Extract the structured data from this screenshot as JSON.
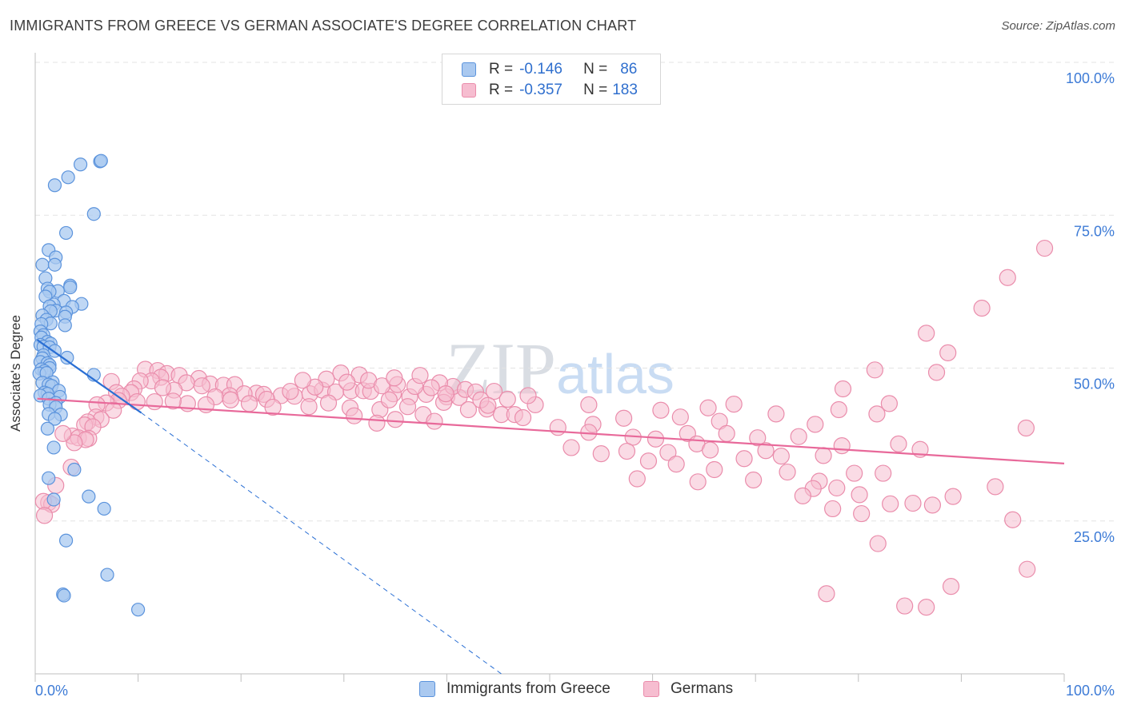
{
  "title": "IMMIGRANTS FROM GREECE VS GERMAN ASSOCIATE'S DEGREE CORRELATION CHART",
  "source": "Source: ZipAtlas.com",
  "watermark": "ZIPatlas",
  "legend": {
    "rows": [
      {
        "r_label": "R =",
        "r_value": "-0.146",
        "n_label": "N =",
        "n_value": "86"
      },
      {
        "r_label": "R =",
        "r_value": "-0.357",
        "n_label": "N =",
        "n_value": "183"
      }
    ]
  },
  "bottom_legend": [
    "Immigrants from Greece",
    "Germans"
  ],
  "colors": {
    "blue_fill": "#aac9f0",
    "blue_stroke": "#5b93dc",
    "blue_line": "#2a6fd4",
    "pink_fill": "#f6bdd0",
    "pink_stroke": "#ea8cab",
    "pink_line": "#e8699a",
    "grid": "#e3e3e3",
    "tick_label": "#3d7bd6"
  },
  "chart_data": {
    "type": "scatter",
    "title": "IMMIGRANTS FROM GREECE VS GERMAN ASSOCIATE'S DEGREE CORRELATION CHART",
    "xlabel": "",
    "ylabel": "Associate's Degree",
    "xlim": [
      0,
      100
    ],
    "ylim": [
      0,
      100
    ],
    "x_tick_labels": [
      "0.0%",
      "100.0%"
    ],
    "y_ticks": [
      25,
      50,
      75,
      100
    ],
    "y_tick_labels": [
      "25.0%",
      "50.0%",
      "75.0%",
      "100.0%"
    ],
    "grid": true,
    "legend_position": "top-center",
    "series": [
      {
        "name": "Immigrants from Greece",
        "R": -0.146,
        "N": 86,
        "trend_solid": [
          [
            0.2,
            54.6
          ],
          [
            10.3,
            42.7
          ]
        ],
        "trend_dashed": [
          [
            10.3,
            42.7
          ],
          [
            45.3,
            0.0
          ]
        ],
        "points": [
          [
            6.3,
            83.8
          ],
          [
            6.4,
            83.9
          ],
          [
            4.4,
            83.3
          ],
          [
            3.2,
            81.2
          ],
          [
            1.9,
            79.9
          ],
          [
            5.7,
            75.2
          ],
          [
            3.0,
            72.1
          ],
          [
            1.3,
            69.3
          ],
          [
            2.0,
            68.1
          ],
          [
            0.7,
            66.9
          ],
          [
            1.9,
            66.9
          ],
          [
            1.0,
            64.7
          ],
          [
            3.4,
            63.5
          ],
          [
            3.4,
            63.2
          ],
          [
            1.2,
            63.0
          ],
          [
            2.2,
            62.6
          ],
          [
            1.4,
            62.5
          ],
          [
            1.0,
            61.7
          ],
          [
            2.8,
            61.0
          ],
          [
            4.5,
            60.5
          ],
          [
            1.8,
            60.4
          ],
          [
            1.4,
            60.1
          ],
          [
            3.6,
            60.0
          ],
          [
            2.0,
            59.4
          ],
          [
            1.5,
            59.3
          ],
          [
            3.0,
            59.1
          ],
          [
            0.7,
            58.6
          ],
          [
            2.9,
            58.4
          ],
          [
            1.1,
            57.9
          ],
          [
            1.5,
            57.3
          ],
          [
            0.6,
            57.2
          ],
          [
            2.9,
            57.0
          ],
          [
            0.5,
            56.0
          ],
          [
            0.8,
            55.4
          ],
          [
            0.6,
            55.0
          ],
          [
            1.2,
            54.3
          ],
          [
            1.5,
            54.0
          ],
          [
            0.5,
            53.8
          ],
          [
            0.8,
            53.5
          ],
          [
            1.4,
            53.4
          ],
          [
            1.9,
            52.8
          ],
          [
            0.8,
            52.1
          ],
          [
            0.7,
            51.6
          ],
          [
            3.1,
            51.7
          ],
          [
            0.5,
            51.0
          ],
          [
            1.2,
            50.8
          ],
          [
            1.4,
            50.5
          ],
          [
            1.4,
            50.0
          ],
          [
            0.6,
            49.8
          ],
          [
            0.9,
            49.5
          ],
          [
            0.4,
            49.1
          ],
          [
            1.1,
            49.2
          ],
          [
            5.7,
            48.9
          ],
          [
            1.7,
            47.7
          ],
          [
            0.7,
            47.6
          ],
          [
            1.3,
            47.3
          ],
          [
            1.6,
            47.1
          ],
          [
            2.3,
            46.3
          ],
          [
            0.9,
            46.0
          ],
          [
            1.2,
            45.8
          ],
          [
            0.5,
            45.5
          ],
          [
            2.4,
            45.3
          ],
          [
            1.3,
            45.0
          ],
          [
            2.0,
            44.3
          ],
          [
            1.4,
            44.0
          ],
          [
            2.0,
            43.6
          ],
          [
            1.3,
            42.5
          ],
          [
            2.5,
            42.4
          ],
          [
            1.9,
            41.7
          ],
          [
            1.2,
            40.1
          ],
          [
            1.8,
            37.0
          ],
          [
            3.8,
            33.4
          ],
          [
            1.3,
            32.0
          ],
          [
            1.8,
            28.5
          ],
          [
            5.2,
            29.0
          ],
          [
            6.7,
            27.0
          ],
          [
            3.0,
            21.8
          ],
          [
            7.0,
            16.2
          ],
          [
            2.7,
            13.0
          ],
          [
            2.8,
            12.8
          ],
          [
            10.0,
            10.5
          ]
        ]
      },
      {
        "name": "Germans",
        "R": -0.357,
        "N": 183,
        "trend_solid": [
          [
            0.2,
            45.0
          ],
          [
            100.0,
            34.4
          ]
        ],
        "points": [
          [
            98.1,
            69.6
          ],
          [
            94.5,
            64.8
          ],
          [
            92.0,
            59.8
          ],
          [
            86.6,
            55.7
          ],
          [
            88.7,
            52.5
          ],
          [
            81.6,
            49.7
          ],
          [
            87.6,
            49.3
          ],
          [
            78.5,
            46.6
          ],
          [
            83.0,
            44.2
          ],
          [
            67.9,
            44.1
          ],
          [
            53.8,
            44.0
          ],
          [
            81.8,
            42.5
          ],
          [
            65.4,
            43.5
          ],
          [
            78.1,
            43.2
          ],
          [
            60.8,
            43.1
          ],
          [
            72.0,
            42.5
          ],
          [
            62.7,
            42.0
          ],
          [
            57.2,
            41.8
          ],
          [
            66.5,
            41.3
          ],
          [
            75.8,
            40.8
          ],
          [
            96.3,
            40.2
          ],
          [
            50.8,
            40.3
          ],
          [
            54.2,
            40.8
          ],
          [
            53.8,
            39.5
          ],
          [
            63.4,
            39.3
          ],
          [
            58.1,
            38.7
          ],
          [
            67.2,
            39.3
          ],
          [
            70.2,
            38.6
          ],
          [
            74.2,
            38.8
          ],
          [
            60.3,
            38.4
          ],
          [
            64.3,
            37.6
          ],
          [
            83.9,
            37.6
          ],
          [
            78.4,
            37.3
          ],
          [
            86.0,
            36.7
          ],
          [
            71.0,
            36.5
          ],
          [
            61.5,
            36.2
          ],
          [
            55.0,
            36.0
          ],
          [
            52.1,
            37.0
          ],
          [
            57.5,
            36.4
          ],
          [
            65.6,
            36.6
          ],
          [
            68.9,
            35.2
          ],
          [
            72.5,
            35.6
          ],
          [
            76.6,
            35.7
          ],
          [
            62.3,
            34.3
          ],
          [
            59.6,
            34.8
          ],
          [
            66.0,
            33.4
          ],
          [
            73.1,
            33.0
          ],
          [
            79.6,
            32.8
          ],
          [
            82.4,
            32.8
          ],
          [
            69.8,
            31.7
          ],
          [
            76.2,
            31.5
          ],
          [
            58.5,
            31.9
          ],
          [
            64.4,
            31.4
          ],
          [
            93.3,
            30.6
          ],
          [
            77.9,
            30.4
          ],
          [
            75.6,
            30.3
          ],
          [
            80.1,
            29.3
          ],
          [
            89.2,
            29.0
          ],
          [
            87.2,
            27.6
          ],
          [
            83.1,
            27.8
          ],
          [
            77.5,
            27.0
          ],
          [
            74.6,
            29.1
          ],
          [
            85.3,
            27.9
          ],
          [
            95.0,
            25.2
          ],
          [
            80.3,
            26.2
          ],
          [
            81.9,
            21.3
          ],
          [
            96.4,
            17.1
          ],
          [
            89.0,
            14.3
          ],
          [
            76.9,
            13.1
          ],
          [
            84.5,
            11.1
          ],
          [
            86.6,
            10.9
          ],
          [
            10.7,
            49.8
          ],
          [
            11.9,
            49.6
          ],
          [
            12.8,
            49.1
          ],
          [
            14.0,
            48.8
          ],
          [
            12.2,
            48.5
          ],
          [
            15.9,
            48.3
          ],
          [
            11.3,
            47.9
          ],
          [
            10.2,
            47.9
          ],
          [
            7.4,
            47.8
          ],
          [
            14.7,
            47.6
          ],
          [
            17.0,
            47.4
          ],
          [
            18.3,
            47.2
          ],
          [
            19.4,
            47.3
          ],
          [
            16.2,
            47.1
          ],
          [
            9.6,
            46.6
          ],
          [
            13.5,
            46.4
          ],
          [
            12.4,
            46.8
          ],
          [
            7.9,
            46.0
          ],
          [
            9.3,
            46.0
          ],
          [
            8.4,
            45.4
          ],
          [
            21.5,
            45.9
          ],
          [
            20.3,
            45.8
          ],
          [
            18.9,
            45.5
          ],
          [
            22.2,
            45.7
          ],
          [
            23.9,
            45.5
          ],
          [
            25.2,
            45.4
          ],
          [
            24.8,
            46.2
          ],
          [
            26.7,
            45.8
          ],
          [
            22.5,
            44.9
          ],
          [
            17.5,
            45.3
          ],
          [
            19.0,
            44.8
          ],
          [
            27.9,
            46.4
          ],
          [
            29.2,
            46.1
          ],
          [
            30.7,
            46.3
          ],
          [
            31.9,
            46.3
          ],
          [
            32.6,
            46.2
          ],
          [
            34.8,
            45.8
          ],
          [
            36.4,
            45.3
          ],
          [
            38.0,
            45.7
          ],
          [
            40.0,
            45.3
          ],
          [
            41.2,
            45.2
          ],
          [
            39.7,
            44.4
          ],
          [
            42.1,
            43.2
          ],
          [
            43.9,
            43.3
          ],
          [
            45.3,
            42.4
          ],
          [
            46.6,
            42.4
          ],
          [
            47.4,
            41.9
          ],
          [
            48.6,
            44.0
          ],
          [
            37.7,
            42.4
          ],
          [
            36.2,
            43.7
          ],
          [
            33.5,
            43.2
          ],
          [
            34.4,
            44.8
          ],
          [
            30.6,
            43.5
          ],
          [
            31.0,
            42.2
          ],
          [
            35.0,
            41.6
          ],
          [
            38.8,
            41.3
          ],
          [
            33.2,
            41.0
          ],
          [
            28.5,
            44.3
          ],
          [
            26.6,
            43.7
          ],
          [
            23.1,
            43.6
          ],
          [
            20.8,
            44.2
          ],
          [
            16.6,
            44.0
          ],
          [
            14.8,
            44.2
          ],
          [
            13.4,
            44.6
          ],
          [
            11.6,
            44.5
          ],
          [
            9.9,
            44.5
          ],
          [
            8.1,
            44.7
          ],
          [
            6.9,
            44.3
          ],
          [
            6.0,
            44.0
          ],
          [
            7.6,
            43.1
          ],
          [
            5.9,
            42.0
          ],
          [
            6.4,
            41.6
          ],
          [
            5.1,
            41.2
          ],
          [
            4.8,
            40.7
          ],
          [
            5.6,
            40.4
          ],
          [
            3.6,
            38.9
          ],
          [
            4.2,
            38.6
          ],
          [
            5.2,
            38.5
          ],
          [
            4.9,
            38.3
          ],
          [
            3.8,
            37.8
          ],
          [
            2.7,
            39.3
          ],
          [
            3.5,
            33.8
          ],
          [
            2.0,
            30.8
          ],
          [
            1.3,
            28.0
          ],
          [
            1.6,
            27.7
          ],
          [
            0.8,
            28.2
          ],
          [
            0.9,
            25.9
          ],
          [
            29.7,
            49.2
          ],
          [
            31.5,
            48.9
          ],
          [
            28.3,
            48.2
          ],
          [
            35.2,
            47.3
          ],
          [
            40.6,
            47.0
          ],
          [
            39.3,
            47.6
          ],
          [
            27.2,
            46.9
          ],
          [
            41.8,
            46.5
          ],
          [
            44.6,
            46.2
          ],
          [
            32.4,
            48.0
          ],
          [
            33.7,
            47.1
          ],
          [
            36.9,
            47.0
          ],
          [
            38.5,
            46.8
          ],
          [
            42.8,
            46.1
          ],
          [
            45.9,
            44.9
          ],
          [
            47.9,
            45.5
          ],
          [
            34.9,
            48.4
          ],
          [
            26.0,
            48.0
          ],
          [
            37.4,
            48.8
          ],
          [
            30.3,
            47.7
          ],
          [
            39.9,
            45.8
          ],
          [
            43.3,
            44.8
          ],
          [
            44.0,
            43.9
          ]
        ]
      }
    ]
  }
}
